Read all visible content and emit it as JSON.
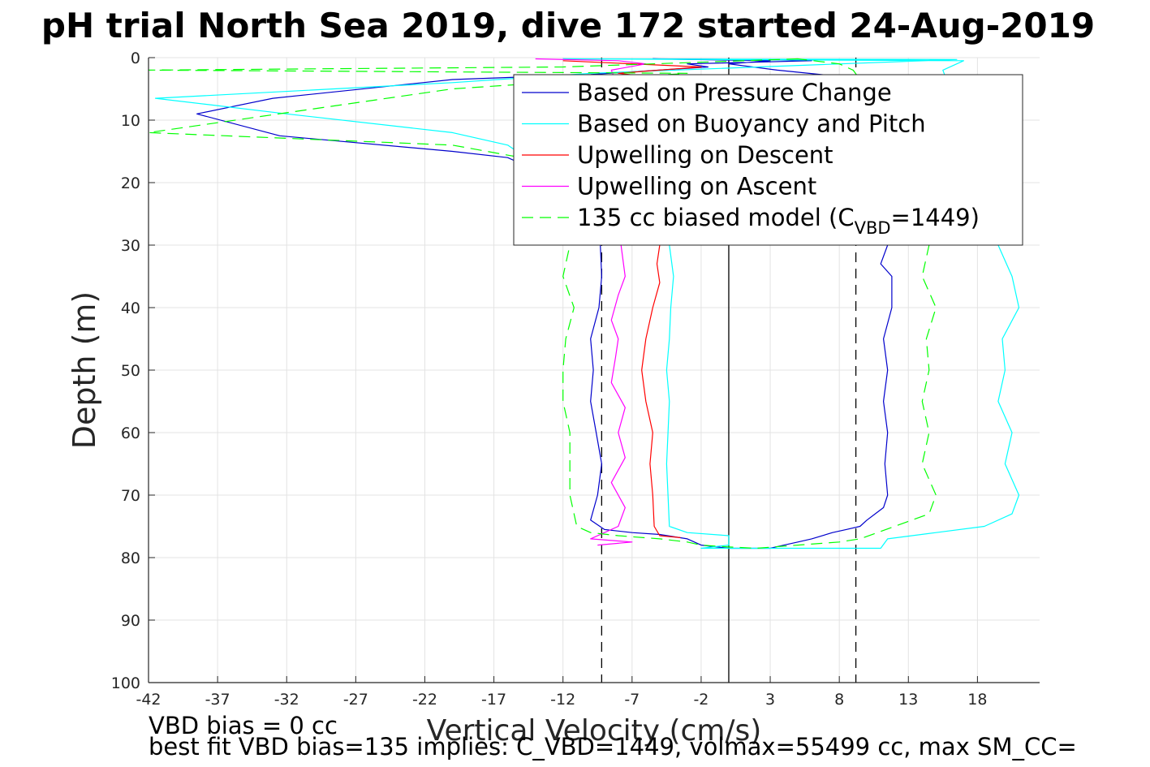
{
  "figure": {
    "title": "pH trial North Sea 2019, dive 172 started 24-Aug-2019",
    "note_line1": "VBD bias = 0 cc",
    "note_line2": "best fit VBD bias=135 implies: C_VBD=1449, volmax=55499 cc, max SM_CC="
  },
  "chart_data": {
    "type": "line",
    "title": "pH trial North Sea 2019, dive 172 started 24-Aug-2019",
    "xlabel": "Vertical Velocity (cm/s)",
    "ylabel": "Depth (m)",
    "xlim": [
      -42,
      22.5
    ],
    "ylim": [
      0,
      100
    ],
    "y_reversed": true,
    "x_ticks": [
      -42,
      -37,
      -32,
      -27,
      -22,
      -17,
      -12,
      -7,
      -2,
      3,
      8,
      13,
      18
    ],
    "y_ticks": [
      0,
      10,
      20,
      30,
      40,
      50,
      60,
      70,
      80,
      90,
      100
    ],
    "grid": true,
    "legend_position": "top-right",
    "legend": [
      {
        "label": "Based on Pressure Change",
        "color": "#0000cc",
        "dash": "solid"
      },
      {
        "label": "Based on Buoyancy and Pitch",
        "color": "#00ffff",
        "dash": "solid"
      },
      {
        "label": "Upwelling on Descent",
        "color": "#ff0000",
        "dash": "solid"
      },
      {
        "label": "Upwelling on Ascent",
        "color": "#ff00ff",
        "dash": "solid"
      },
      {
        "label_pre": "135 cc biased model (C",
        "label_sub": "VBD",
        "label_post": "=1449)",
        "color": "#00ff00",
        "dash": "dashed"
      }
    ],
    "reference_lines": [
      {
        "x": 0,
        "style": "solid",
        "color": "#000000"
      },
      {
        "x": -9.2,
        "style": "dashed",
        "color": "#000000"
      },
      {
        "x": 9.2,
        "style": "dashed",
        "color": "#000000"
      }
    ],
    "series": [
      {
        "name": "Based on Pressure Change",
        "color": "#0000cc",
        "dash": "solid",
        "points": [
          [
            -5.5,
            0.2
          ],
          [
            2,
            0.3
          ],
          [
            6,
            0.5
          ],
          [
            -3,
            1
          ],
          [
            -1.5,
            1.5
          ],
          [
            -10,
            2.7
          ],
          [
            -20,
            3.5
          ],
          [
            -33,
            6.5
          ],
          [
            -38.5,
            9
          ],
          [
            -32.5,
            12.5
          ],
          [
            -20,
            15
          ],
          [
            -16,
            16
          ],
          [
            -12,
            20
          ],
          [
            -10.5,
            25
          ],
          [
            -9.3,
            30
          ],
          [
            -9.2,
            35
          ],
          [
            -9.4,
            40
          ],
          [
            -10,
            45
          ],
          [
            -9.8,
            50
          ],
          [
            -10,
            55
          ],
          [
            -9.6,
            60
          ],
          [
            -9.2,
            65
          ],
          [
            -9.5,
            70
          ],
          [
            -10,
            74
          ],
          [
            -9,
            75.5
          ],
          [
            -7,
            76
          ],
          [
            -5,
            76.3
          ],
          [
            -3,
            77
          ],
          [
            -2,
            78
          ],
          [
            0,
            78.5
          ],
          [
            3,
            78.5
          ],
          [
            4,
            78
          ],
          [
            5,
            77.5
          ],
          [
            6,
            77
          ],
          [
            7.5,
            76
          ],
          [
            8.5,
            75.5
          ],
          [
            9.5,
            75
          ],
          [
            10,
            74
          ],
          [
            11.2,
            72
          ],
          [
            11.5,
            70
          ],
          [
            11.3,
            65
          ],
          [
            11.5,
            60
          ],
          [
            11.2,
            55
          ],
          [
            11.5,
            50
          ],
          [
            11.2,
            45
          ],
          [
            11.8,
            40
          ],
          [
            11.8,
            35
          ],
          [
            11,
            33
          ],
          [
            11.5,
            30
          ],
          [
            11.3,
            28
          ],
          [
            10,
            25
          ],
          [
            9,
            20
          ],
          [
            8,
            15
          ],
          [
            6,
            10
          ],
          [
            6.5,
            5
          ],
          [
            8,
            3
          ],
          [
            3.5,
            2
          ],
          [
            0,
            1
          ],
          [
            3,
            0.5
          ],
          [
            -5.5,
            0.2
          ]
        ]
      },
      {
        "name": "Based on Buoyancy and Pitch",
        "color": "#00ffff",
        "dash": "solid",
        "points": [
          [
            -12,
            0.2
          ],
          [
            16.5,
            0.3
          ],
          [
            -10,
            2.5
          ],
          [
            -20,
            4
          ],
          [
            -41.5,
            6.5
          ],
          [
            -32,
            9
          ],
          [
            -20,
            12
          ],
          [
            -16,
            14
          ],
          [
            -12,
            20
          ],
          [
            -6,
            25
          ],
          [
            -4.3,
            30
          ],
          [
            -4,
            35
          ],
          [
            -4.2,
            40
          ],
          [
            -4.3,
            45
          ],
          [
            -4.5,
            50
          ],
          [
            -4.3,
            55
          ],
          [
            -4.4,
            60
          ],
          [
            -4.5,
            65
          ],
          [
            -4.4,
            70
          ],
          [
            -4.3,
            75
          ],
          [
            -3,
            76
          ],
          [
            0,
            76.5
          ],
          [
            0,
            78
          ],
          [
            -2,
            78.5
          ],
          [
            4,
            78.5
          ],
          [
            8,
            78.5
          ],
          [
            11,
            78.5
          ],
          [
            11.5,
            77
          ],
          [
            15,
            76
          ],
          [
            18.5,
            75
          ],
          [
            20.5,
            73
          ],
          [
            21,
            70
          ],
          [
            20,
            65
          ],
          [
            20.5,
            60
          ],
          [
            19.5,
            55
          ],
          [
            20,
            50
          ],
          [
            19.8,
            45
          ],
          [
            21,
            40
          ],
          [
            20.5,
            35
          ],
          [
            19.5,
            30
          ],
          [
            19,
            25
          ],
          [
            17,
            20
          ],
          [
            16,
            15
          ],
          [
            15.5,
            10
          ],
          [
            16,
            5
          ],
          [
            15.5,
            2
          ],
          [
            17,
            0.5
          ],
          [
            -12,
            0.2
          ]
        ]
      },
      {
        "name": "Upwelling on Descent",
        "color": "#ff0000",
        "dash": "solid",
        "points": [
          [
            -12,
            0.5
          ],
          [
            -2,
            1.5
          ],
          [
            -8,
            2.5
          ],
          [
            -6,
            3
          ],
          [
            -5,
            10
          ],
          [
            -4.5,
            20
          ],
          [
            -5,
            28
          ],
          [
            -5,
            30
          ],
          [
            -5.2,
            33
          ],
          [
            -5,
            36
          ],
          [
            -5.5,
            40
          ],
          [
            -6,
            45
          ],
          [
            -6.3,
            50
          ],
          [
            -6,
            55
          ],
          [
            -5.5,
            60
          ],
          [
            -5.7,
            65
          ],
          [
            -5.5,
            70
          ],
          [
            -5.4,
            75
          ],
          [
            -5,
            76.5
          ],
          [
            -3.5,
            76.8
          ]
        ]
      },
      {
        "name": "Upwelling on Ascent",
        "color": "#ff00ff",
        "dash": "solid",
        "points": [
          [
            -14,
            0.2
          ],
          [
            -8,
            0.5
          ],
          [
            -6,
            1
          ],
          [
            -8.5,
            2
          ],
          [
            -8,
            5
          ],
          [
            -7.5,
            10
          ],
          [
            -7,
            20
          ],
          [
            -7.5,
            28
          ],
          [
            -7.8,
            30
          ],
          [
            -7.5,
            35
          ],
          [
            -8,
            38
          ],
          [
            -8.5,
            42
          ],
          [
            -8,
            45
          ],
          [
            -8.2,
            48
          ],
          [
            -8.5,
            52
          ],
          [
            -7.5,
            56
          ],
          [
            -8,
            60
          ],
          [
            -7.5,
            64
          ],
          [
            -8.5,
            68
          ],
          [
            -7.5,
            72
          ],
          [
            -8,
            75
          ],
          [
            -10,
            77
          ],
          [
            -7,
            77.5
          ],
          [
            -9.5,
            78
          ]
        ]
      },
      {
        "name": "135 cc biased model (C_VBD=1449)",
        "color": "#00ff00",
        "dash": "dashed",
        "points": [
          [
            5,
            0.2
          ],
          [
            -12,
            1.5
          ],
          [
            -42,
            2
          ],
          [
            -3,
            2.5
          ],
          [
            -20,
            5
          ],
          [
            -42,
            12
          ],
          [
            -20,
            14
          ],
          [
            -15,
            16
          ],
          [
            -13,
            20
          ],
          [
            -12,
            25
          ],
          [
            -11.5,
            30
          ],
          [
            -12,
            35
          ],
          [
            -11.2,
            40
          ],
          [
            -11.8,
            45
          ],
          [
            -12,
            50
          ],
          [
            -12,
            55
          ],
          [
            -11.5,
            60
          ],
          [
            -11.5,
            65
          ],
          [
            -11.5,
            70
          ],
          [
            -11.2,
            73
          ],
          [
            -11,
            75
          ],
          [
            -10,
            76
          ],
          [
            -8,
            76.5
          ],
          [
            -5,
            77
          ],
          [
            -3,
            77.5
          ],
          [
            -2,
            78
          ],
          [
            0,
            78.3
          ],
          [
            2,
            78.5
          ],
          [
            5,
            78
          ],
          [
            8,
            77.5
          ],
          [
            9.5,
            77
          ],
          [
            12,
            75
          ],
          [
            14.5,
            73
          ],
          [
            15,
            70
          ],
          [
            14,
            65
          ],
          [
            14.5,
            60
          ],
          [
            14,
            55
          ],
          [
            14.5,
            50
          ],
          [
            14.3,
            45
          ],
          [
            15,
            40
          ],
          [
            14,
            35
          ],
          [
            14.5,
            30
          ],
          [
            14,
            25
          ],
          [
            13,
            20
          ],
          [
            12,
            15
          ],
          [
            11,
            10
          ],
          [
            10,
            5
          ],
          [
            9,
            2
          ],
          [
            8,
            1
          ],
          [
            5,
            0.2
          ]
        ]
      }
    ]
  }
}
